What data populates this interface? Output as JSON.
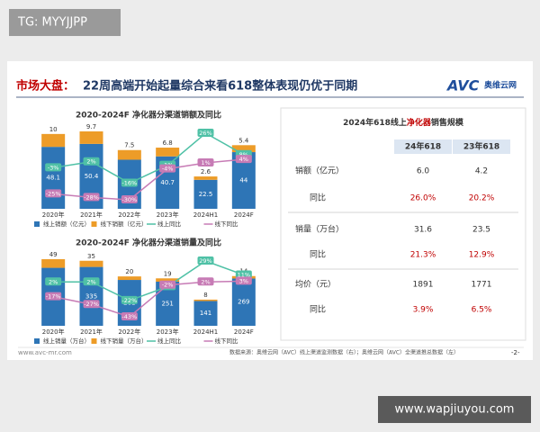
{
  "badge": "TG: MYYJJPP",
  "header": {
    "title_prefix": "市场大盘：",
    "title": "22周高端开始起量综合来看618整体表现仍优于同期",
    "logo": "AVC",
    "logo_text": "奥维云网"
  },
  "chart_data": [
    {
      "type": "combo",
      "title": "2020-2024F 净化器分渠道销额及同比",
      "categories": [
        "2020年",
        "2021年",
        "2022年",
        "2023年",
        "2024H1",
        "2024F"
      ],
      "series": [
        {
          "name": "线上销额（亿元）",
          "type": "bar",
          "color": "#2e75b6",
          "values": [
            48.1,
            50.4,
            38.1,
            40.7,
            22.5,
            44.0
          ]
        },
        {
          "name": "线下销额（亿元）",
          "type": "bar",
          "color": "#ed9c28",
          "values": [
            10.0,
            9.7,
            7.5,
            6.8,
            2.6,
            5.4
          ]
        },
        {
          "name": "线上同比",
          "type": "line",
          "color": "#4fc1a6",
          "values": [
            -3,
            2,
            -16,
            -1,
            26,
            8
          ],
          "value_labels": [
            "-3%",
            "2%",
            "-16%",
            "-1%",
            "26%",
            "8%"
          ]
        },
        {
          "name": "线下同比",
          "type": "line",
          "color": "#c77bb5",
          "values": [
            -25,
            -28,
            -30,
            -4,
            1,
            4
          ],
          "value_labels": [
            "-25%",
            "-28%",
            "-30%",
            "-4%",
            "1%",
            "4%"
          ]
        }
      ]
    },
    {
      "type": "combo",
      "title": "2020-2024F 净化器分渠道销量及同比",
      "categories": [
        "2020年",
        "2021年",
        "2022年",
        "2023年",
        "2024H1",
        "2024F"
      ],
      "series": [
        {
          "name": "线上销量（万台）",
          "type": "bar",
          "color": "#2e75b6",
          "values": [
            330,
            335,
            261,
            251,
            141,
            269
          ]
        },
        {
          "name": "线下销量（万台）",
          "type": "bar",
          "color": "#ed9c28",
          "values": [
            49,
            35,
            20,
            19,
            8,
            14
          ]
        },
        {
          "name": "线上同比",
          "type": "line",
          "color": "#4fc1a6",
          "values": [
            2,
            2,
            -22,
            -4,
            29,
            11
          ],
          "value_labels": [
            "2%",
            "2%",
            "-22%",
            "-4%",
            "29%",
            "11%"
          ]
        },
        {
          "name": "线下同比",
          "type": "line",
          "color": "#c77bb5",
          "values": [
            -17,
            -27,
            -43,
            -2,
            2,
            3
          ],
          "value_labels": [
            "-17%",
            "-27%",
            "-43%",
            "-2%",
            "2%",
            "3%"
          ]
        }
      ]
    }
  ],
  "table": {
    "title": [
      "2024年618线上",
      "净化器",
      "销售规模"
    ],
    "columns": [
      "24年618",
      "23年618"
    ],
    "rows": [
      {
        "label": "销额（亿元）",
        "cells": [
          "6.0",
          "4.2"
        ]
      },
      {
        "label": "同比",
        "cells": [
          "26.0%",
          "20.2%"
        ]
      },
      {
        "label": "销量（万台）",
        "cells": [
          "31.6",
          "23.5"
        ]
      },
      {
        "label": "同比",
        "cells": [
          "21.3%",
          "12.9%"
        ]
      },
      {
        "label": "均价（元）",
        "cells": [
          "1891",
          "1771"
        ]
      },
      {
        "label": "同比",
        "cells": [
          "3.9%",
          "6.5%"
        ]
      }
    ]
  },
  "footer": {
    "site": "www.avc-mr.com",
    "source": "数据来源：奥维云网（AVC）线上渠道监测数据（右）；奥维云网（AVC）全渠道推总数据（左）",
    "page": "-2-"
  },
  "watermark": "www.wapjiuyou.com"
}
